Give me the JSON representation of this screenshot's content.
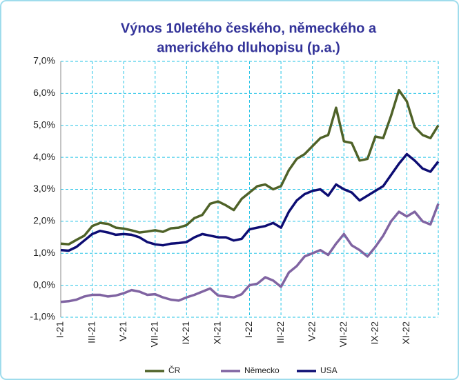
{
  "chart_data": {
    "type": "line",
    "title": [
      "Výnos 10letého českého, německého a",
      "amerického dluhopisu (p.a.)"
    ],
    "categories": [
      "I-21",
      null,
      null,
      null,
      "III-21",
      null,
      null,
      null,
      "V-21",
      null,
      null,
      null,
      "VII-21",
      null,
      null,
      null,
      "IX-21",
      null,
      null,
      null,
      "XI-21",
      null,
      null,
      null,
      "I-22",
      null,
      null,
      null,
      "III-22",
      null,
      null,
      null,
      "V-22",
      null,
      null,
      null,
      "VII-22",
      null,
      null,
      null,
      "IX-22",
      null,
      null,
      null,
      "XI-22",
      null,
      null,
      null,
      null
    ],
    "series": [
      {
        "name": "ČR",
        "color": "#4f6228",
        "values": [
          1.3,
          1.28,
          1.42,
          1.55,
          1.85,
          1.95,
          1.92,
          1.8,
          1.77,
          1.72,
          1.65,
          1.68,
          1.72,
          1.67,
          1.78,
          1.8,
          1.88,
          2.1,
          2.2,
          2.55,
          2.62,
          2.5,
          2.35,
          2.7,
          2.9,
          3.1,
          3.15,
          3.0,
          3.1,
          3.6,
          3.95,
          4.1,
          4.35,
          4.6,
          4.7,
          5.55,
          4.5,
          4.45,
          3.9,
          3.95,
          4.65,
          4.6,
          5.3,
          6.1,
          5.75,
          4.95,
          4.7,
          4.6,
          5.0
        ]
      },
      {
        "name": "Německo",
        "color": "#8064a2",
        "values": [
          -0.52,
          -0.5,
          -0.45,
          -0.35,
          -0.3,
          -0.3,
          -0.35,
          -0.32,
          -0.25,
          -0.15,
          -0.2,
          -0.3,
          -0.28,
          -0.38,
          -0.45,
          -0.48,
          -0.38,
          -0.3,
          -0.2,
          -0.1,
          -0.32,
          -0.35,
          -0.38,
          -0.28,
          0.0,
          0.05,
          0.25,
          0.15,
          -0.05,
          0.4,
          0.6,
          0.9,
          1.0,
          1.1,
          0.95,
          1.3,
          1.6,
          1.25,
          1.1,
          0.9,
          1.2,
          1.55,
          2.0,
          2.3,
          2.15,
          2.3,
          2.0,
          1.9,
          2.55
        ]
      },
      {
        "name": "USA",
        "color": "#0d0d73",
        "values": [
          1.1,
          1.08,
          1.2,
          1.4,
          1.6,
          1.7,
          1.65,
          1.58,
          1.6,
          1.58,
          1.5,
          1.35,
          1.28,
          1.25,
          1.3,
          1.32,
          1.35,
          1.5,
          1.6,
          1.55,
          1.5,
          1.5,
          1.4,
          1.45,
          1.75,
          1.8,
          1.85,
          1.95,
          1.8,
          2.3,
          2.65,
          2.85,
          2.95,
          3.0,
          2.8,
          3.15,
          3.0,
          2.9,
          2.65,
          2.8,
          2.95,
          3.1,
          3.45,
          3.8,
          4.1,
          3.9,
          3.65,
          3.55,
          3.87
        ]
      }
    ],
    "ylim": [
      -1,
      7
    ],
    "yticks": [
      {
        "value": -1,
        "label": "-1,0%"
      },
      {
        "value": 0,
        "label": "0,0%"
      },
      {
        "value": 1,
        "label": "1,0%"
      },
      {
        "value": 2,
        "label": "2,0%"
      },
      {
        "value": 3,
        "label": "3,0%"
      },
      {
        "value": 4,
        "label": "4,0%"
      },
      {
        "value": 5,
        "label": "5,0%"
      },
      {
        "value": 6,
        "label": "6,0%"
      },
      {
        "value": 7,
        "label": "7,0%"
      }
    ],
    "grid": true,
    "legend": "bottom"
  }
}
